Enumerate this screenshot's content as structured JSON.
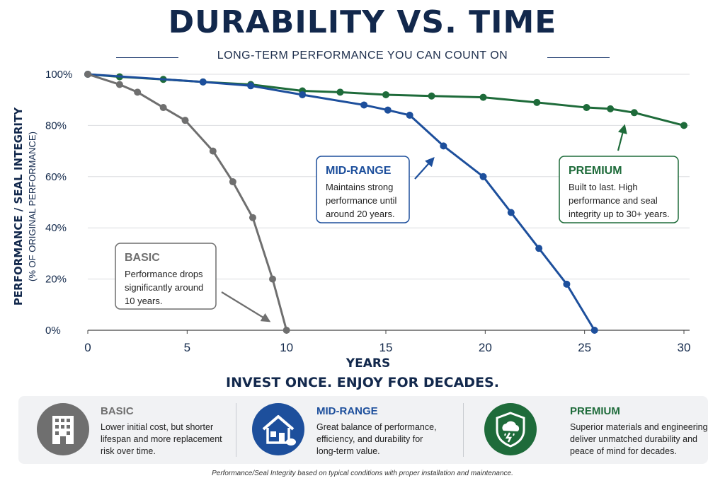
{
  "title": "DURABILITY VS. TIME",
  "subtitle": "LONG-TERM PERFORMANCE YOU CAN COUNT ON",
  "tagline": "INVEST ONCE. ENJOY FOR DECADES.",
  "footnote": "Performance/Seal Integrity based on typical conditions with proper installation and maintenance.",
  "colors": {
    "basic": "#6f6f6f",
    "mid": "#1d4f9c",
    "premium": "#1e6b3a",
    "navy": "#12284c"
  },
  "chart_data": {
    "type": "line",
    "xlabel": "YEARS",
    "ylabel": "PERFORMANCE / SEAL INTEGRITY",
    "ylabel2": "(% OF ORIGINAL PERFORMANCE)",
    "xlim": [
      0,
      30
    ],
    "ylim": [
      0,
      100
    ],
    "xticks": [
      0,
      5,
      10,
      15,
      20,
      25,
      30
    ],
    "yticks": [
      0,
      20,
      40,
      60,
      80,
      100
    ],
    "ytick_labels": [
      "0%",
      "20%",
      "40%",
      "60%",
      "80%",
      "100%"
    ],
    "grid": "horizontal",
    "series": [
      {
        "key": "basic",
        "name": "BASIC",
        "x": [
          0,
          1.6,
          2.5,
          3.8,
          4.9,
          6.3,
          7.3,
          8.3,
          9.3,
          10.0
        ],
        "y": [
          100,
          96,
          93,
          87,
          82,
          70,
          58,
          44,
          20,
          0
        ]
      },
      {
        "key": "mid",
        "name": "MID-RANGE",
        "x": [
          0,
          5.8,
          8.2,
          10.8,
          13.9,
          15.1,
          16.2,
          17.9,
          19.9,
          21.3,
          22.7,
          24.1,
          25.5
        ],
        "y": [
          100,
          97,
          95.5,
          92,
          88,
          86,
          84,
          72,
          60,
          46,
          32,
          18,
          0
        ]
      },
      {
        "key": "premium",
        "name": "PREMIUM",
        "x": [
          0,
          1.6,
          3.8,
          5.8,
          8.2,
          10.8,
          12.7,
          15.0,
          17.3,
          19.9,
          22.6,
          25.1,
          26.3,
          27.5,
          30.0
        ],
        "y": [
          100,
          99,
          98,
          97,
          96,
          93.5,
          93,
          92,
          91.5,
          91,
          89,
          87,
          86.5,
          85,
          80
        ]
      }
    ],
    "annotations": [
      {
        "key": "basic",
        "title": "BASIC",
        "text": [
          "Performance drops",
          "significantly around",
          "10 years."
        ]
      },
      {
        "key": "mid",
        "title": "MID-RANGE",
        "text": [
          "Maintains strong",
          "performance until",
          "around 20 years."
        ]
      },
      {
        "key": "premium",
        "title": "PREMIUM",
        "text": [
          "Built to last. High",
          "performance and seal",
          "integrity up to 30+ years."
        ]
      }
    ]
  },
  "tiers": [
    {
      "key": "basic",
      "name": "BASIC",
      "icon": "building-icon",
      "lines": [
        "Lower initial cost, but shorter",
        "lifespan and more replacement",
        "risk over time."
      ]
    },
    {
      "key": "mid",
      "name": "MID-RANGE",
      "icon": "house-icon",
      "lines": [
        "Great balance of performance,",
        "efficiency, and durability for",
        "long-term value."
      ]
    },
    {
      "key": "premium",
      "name": "PREMIUM",
      "icon": "storm-shield-icon",
      "lines": [
        "Superior materials and engineering",
        "deliver unmatched durability and",
        "peace of mind for decades."
      ]
    }
  ]
}
